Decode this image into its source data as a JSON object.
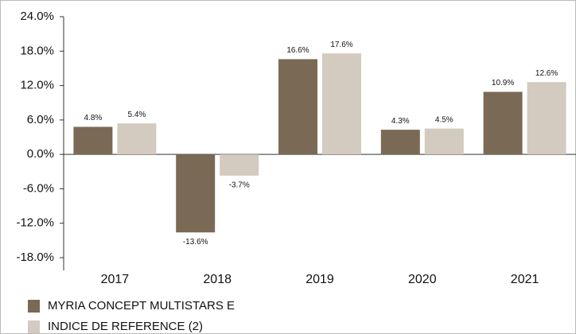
{
  "chart_data": {
    "type": "bar",
    "categories": [
      "2017",
      "2018",
      "2019",
      "2020",
      "2021"
    ],
    "series": [
      {
        "name": "MYRIA CONCEPT MULTISTARS E",
        "color": "#7a6a55",
        "values": [
          4.8,
          -13.6,
          16.6,
          4.3,
          10.9
        ],
        "value_labels": [
          "4.8%",
          "-13.6%",
          "16.6%",
          "4.3%",
          "10.9%"
        ]
      },
      {
        "name": "INDICE DE REFERENCE (2)",
        "color": "#d3cac0",
        "values": [
          5.4,
          -3.7,
          17.6,
          4.5,
          12.6
        ],
        "value_labels": [
          "5.4%",
          "-3.7%",
          "17.6%",
          "4.5%",
          "12.6%"
        ]
      }
    ],
    "ylim": [
      -18,
      24
    ],
    "yticks": [
      {
        "value": -18,
        "label": "-18.0%"
      },
      {
        "value": -12,
        "label": "-12.0%"
      },
      {
        "value": -6,
        "label": "-6.0%"
      },
      {
        "value": 0,
        "label": "0.0%"
      },
      {
        "value": 6,
        "label": "6.0%"
      },
      {
        "value": 12,
        "label": "12.0%"
      },
      {
        "value": 18,
        "label": "18.0%"
      },
      {
        "value": 24,
        "label": "24.0%"
      }
    ],
    "grid": false,
    "legend": "bottom-left"
  }
}
